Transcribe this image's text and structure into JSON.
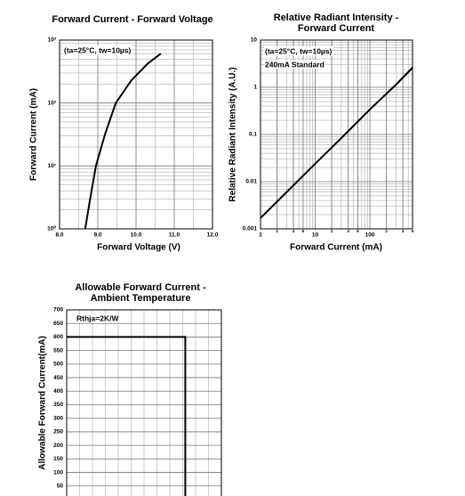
{
  "chart_data": [
    {
      "type": "line",
      "title": [
        "Forward Current - Forward Voltage"
      ],
      "xlabel": "Forward Voltage (V)",
      "ylabel": "Forward Current (mA)",
      "annotations": [
        "(ta=25°C, tw=10µs)"
      ],
      "x": [
        8.67,
        8.8,
        8.95,
        9.19,
        9.47,
        9.88,
        10.3,
        10.65
      ],
      "values": [
        1,
        3,
        10,
        32,
        100,
        230,
        420,
        610
      ],
      "color": "#000000",
      "xlim": [
        8,
        12
      ],
      "xticks": [
        {
          "value": 8,
          "label": "8.0"
        },
        {
          "value": 9,
          "label": "9.0"
        },
        {
          "value": 10,
          "label": "10.0"
        },
        {
          "value": 11,
          "label": "11.0"
        },
        {
          "value": 12,
          "label": "12.0"
        }
      ],
      "ylim": [
        1,
        1000
      ],
      "yscale": "log",
      "yticks": [
        {
          "value": 1,
          "label": "10⁰"
        },
        {
          "value": 10,
          "label": "10¹"
        },
        {
          "value": 100,
          "label": "10²"
        },
        {
          "value": 1000,
          "label": "10³"
        }
      ],
      "grid": true
    },
    {
      "type": "line",
      "title": [
        "Relative Radiant Intensity -",
        "Forward Current"
      ],
      "xlabel": "Forward Current (mA)",
      "ylabel": "Relative Radiant Intensity (A.U.)",
      "annotations": [
        "(ta=25°C, tw=10µs)",
        "240mA Standard"
      ],
      "x": [
        1,
        3,
        10,
        30,
        100,
        300,
        600
      ],
      "values": [
        0.0017,
        0.006,
        0.024,
        0.084,
        0.34,
        1.14,
        2.6
      ],
      "color": "#000000",
      "xlim": [
        1,
        600
      ],
      "xscale": "log",
      "xticks": [
        1,
        2,
        4,
        6,
        10,
        {
          "value": 20,
          "label": "2"
        },
        {
          "value": 40,
          "label": "4"
        },
        {
          "value": 60,
          "label": "6"
        },
        100,
        {
          "value": 200,
          "label": "2"
        },
        {
          "value": 400,
          "label": "4"
        },
        {
          "value": 600,
          "label": "6"
        }
      ],
      "ylim": [
        0.001,
        10
      ],
      "yscale": "log",
      "yticks": [
        0.001,
        0.01,
        0.1,
        1,
        10
      ],
      "grid": true
    },
    {
      "type": "line",
      "title": [
        "Allowable Forward Current -",
        "Ambient Temperature"
      ],
      "ylabel": "Allowable Forward Current(mA)",
      "annotations": [
        "Rthja=2K/W"
      ],
      "x": [
        0,
        92,
        92
      ],
      "values": [
        600,
        600,
        0
      ],
      "color": "#000000",
      "xlim": [
        0,
        120
      ],
      "ylim": [
        0,
        700
      ],
      "yticks": [
        50,
        100,
        150,
        200,
        250,
        300,
        350,
        400,
        450,
        500,
        550,
        600,
        650,
        700
      ],
      "grid": true
    }
  ]
}
